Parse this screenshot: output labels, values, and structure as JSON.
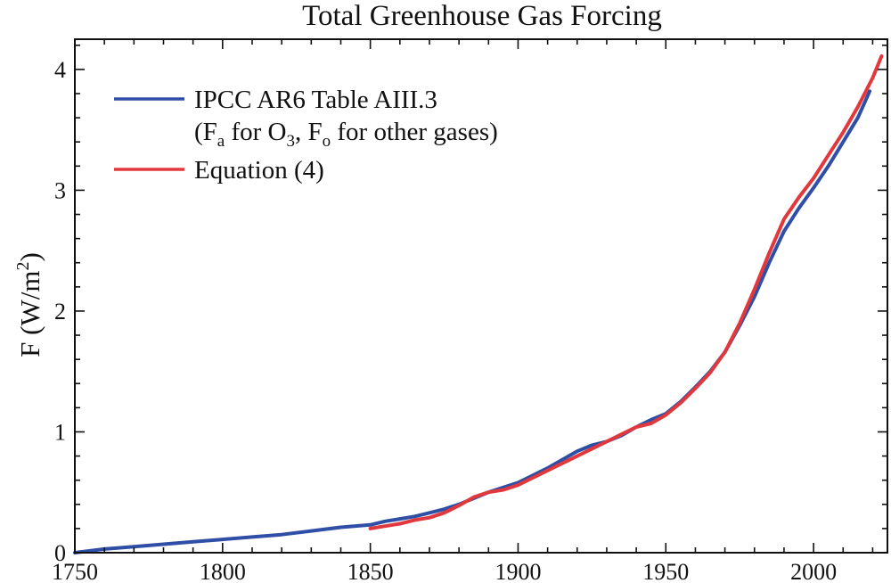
{
  "chart_data": {
    "type": "line",
    "title": "Total Greenhouse Gas Forcing",
    "xlabel": "",
    "ylabel": "F (W/m2)",
    "ylabel_parts": {
      "main": "F (W/m",
      "sup": "2",
      "close": ")"
    },
    "xlim": [
      1750,
      2025
    ],
    "ylim": [
      0,
      4.25
    ],
    "xticks": [
      1750,
      1800,
      1850,
      1900,
      1950,
      2000
    ],
    "yticks": [
      0,
      1,
      2,
      3,
      4
    ],
    "grid": false,
    "legend": {
      "placement": "top-left",
      "entries": [
        {
          "line1": "IPCC AR6 Table AIII.3",
          "line2": {
            "open": "(F",
            "sub1": "a",
            "mid1": " for O",
            "sub2": "3",
            "mid2": ", F",
            "sub3": "o",
            "rest": " for other gases)"
          },
          "color": "#2f4fa6"
        },
        {
          "line1": "Equation (4)",
          "color": "#e0383c"
        }
      ]
    },
    "series": [
      {
        "name": "IPCC AR6 Table AIII.3 (Fa for O3, Fo for other gases)",
        "color": "#2f4fa6",
        "x": [
          1750,
          1760,
          1770,
          1780,
          1790,
          1800,
          1810,
          1820,
          1830,
          1840,
          1850,
          1855,
          1860,
          1865,
          1870,
          1875,
          1880,
          1885,
          1890,
          1895,
          1900,
          1905,
          1910,
          1915,
          1920,
          1925,
          1930,
          1935,
          1940,
          1945,
          1950,
          1955,
          1960,
          1965,
          1970,
          1975,
          1980,
          1985,
          1990,
          1995,
          2000,
          2005,
          2010,
          2015,
          2019
        ],
        "y": [
          0.0,
          0.03,
          0.05,
          0.07,
          0.09,
          0.11,
          0.13,
          0.15,
          0.18,
          0.21,
          0.23,
          0.26,
          0.28,
          0.3,
          0.33,
          0.36,
          0.4,
          0.45,
          0.5,
          0.54,
          0.58,
          0.64,
          0.7,
          0.77,
          0.84,
          0.89,
          0.92,
          0.97,
          1.04,
          1.1,
          1.15,
          1.25,
          1.37,
          1.5,
          1.66,
          1.88,
          2.12,
          2.4,
          2.66,
          2.85,
          3.02,
          3.2,
          3.4,
          3.6,
          3.82
        ]
      },
      {
        "name": "Equation (4)",
        "color": "#e0383c",
        "x": [
          1850,
          1855,
          1860,
          1865,
          1870,
          1875,
          1880,
          1885,
          1890,
          1895,
          1900,
          1905,
          1910,
          1915,
          1920,
          1925,
          1930,
          1935,
          1940,
          1945,
          1950,
          1955,
          1960,
          1965,
          1970,
          1975,
          1980,
          1985,
          1990,
          1995,
          2000,
          2005,
          2010,
          2015,
          2020,
          2023
        ],
        "y": [
          0.2,
          0.22,
          0.24,
          0.27,
          0.29,
          0.33,
          0.39,
          0.46,
          0.5,
          0.52,
          0.56,
          0.62,
          0.68,
          0.74,
          0.8,
          0.86,
          0.92,
          0.98,
          1.04,
          1.07,
          1.14,
          1.24,
          1.36,
          1.49,
          1.66,
          1.9,
          2.18,
          2.48,
          2.76,
          2.94,
          3.1,
          3.29,
          3.48,
          3.69,
          3.93,
          4.11
        ]
      }
    ]
  }
}
